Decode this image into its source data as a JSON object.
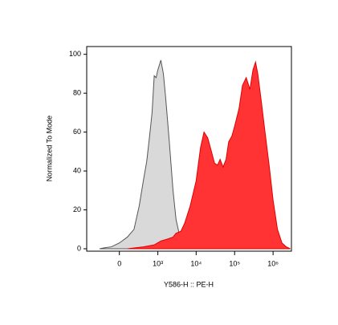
{
  "chart_data": {
    "type": "area",
    "x_label": "Y586-H :: PE-H",
    "y_label": "Normalized To Mode",
    "xscale": "biex",
    "xlim": [
      -700,
      3000000
    ],
    "xticks": [
      0,
      {
        "value": 1000,
        "label": "10³"
      },
      {
        "value": 10000,
        "label": "10⁴"
      },
      {
        "value": 100000,
        "label": "10⁵"
      },
      {
        "value": 1000000,
        "label": "10⁶"
      }
    ],
    "ylim": [
      0,
      104
    ],
    "yticks": [
      0,
      20,
      40,
      60,
      80,
      100
    ],
    "series": [
      {
        "color": "#d9d9d9",
        "line_color": "#555555",
        "x": [
          -300,
          -200,
          -100,
          0,
          100,
          200,
          300,
          400,
          500,
          600,
          700,
          800,
          900,
          1000,
          1200,
          1400,
          1600,
          1800,
          2000,
          2500,
          3000,
          4000,
          5000,
          7000
        ],
        "values": [
          0,
          0.5,
          1,
          3,
          6,
          10,
          22,
          35,
          45,
          58,
          70,
          89,
          88,
          92,
          97,
          90,
          78,
          66,
          55,
          30,
          15,
          4,
          0.5,
          0
        ]
      },
      {
        "color": "#ff3333",
        "line_color": "#e00000",
        "x": [
          100,
          400,
          800,
          1200,
          1800,
          2500,
          3000,
          4000,
          5000,
          7000,
          10000,
          13000,
          16000,
          20000,
          25000,
          30000,
          36000,
          42000,
          50000,
          60000,
          70000,
          85000,
          100000,
          130000,
          160000,
          200000,
          250000,
          300000,
          350000,
          400000,
          500000,
          600000,
          800000,
          1000000,
          1300000,
          1700000,
          2200000,
          2800000
        ],
        "values": [
          0,
          1,
          2,
          4,
          5,
          6,
          8,
          9,
          13,
          22,
          35,
          52,
          60,
          57,
          50,
          44,
          43,
          46,
          42,
          46,
          55,
          58,
          63,
          72,
          84,
          88,
          82,
          92,
          96,
          90,
          75,
          62,
          42,
          25,
          10,
          3,
          1,
          0
        ]
      }
    ]
  }
}
